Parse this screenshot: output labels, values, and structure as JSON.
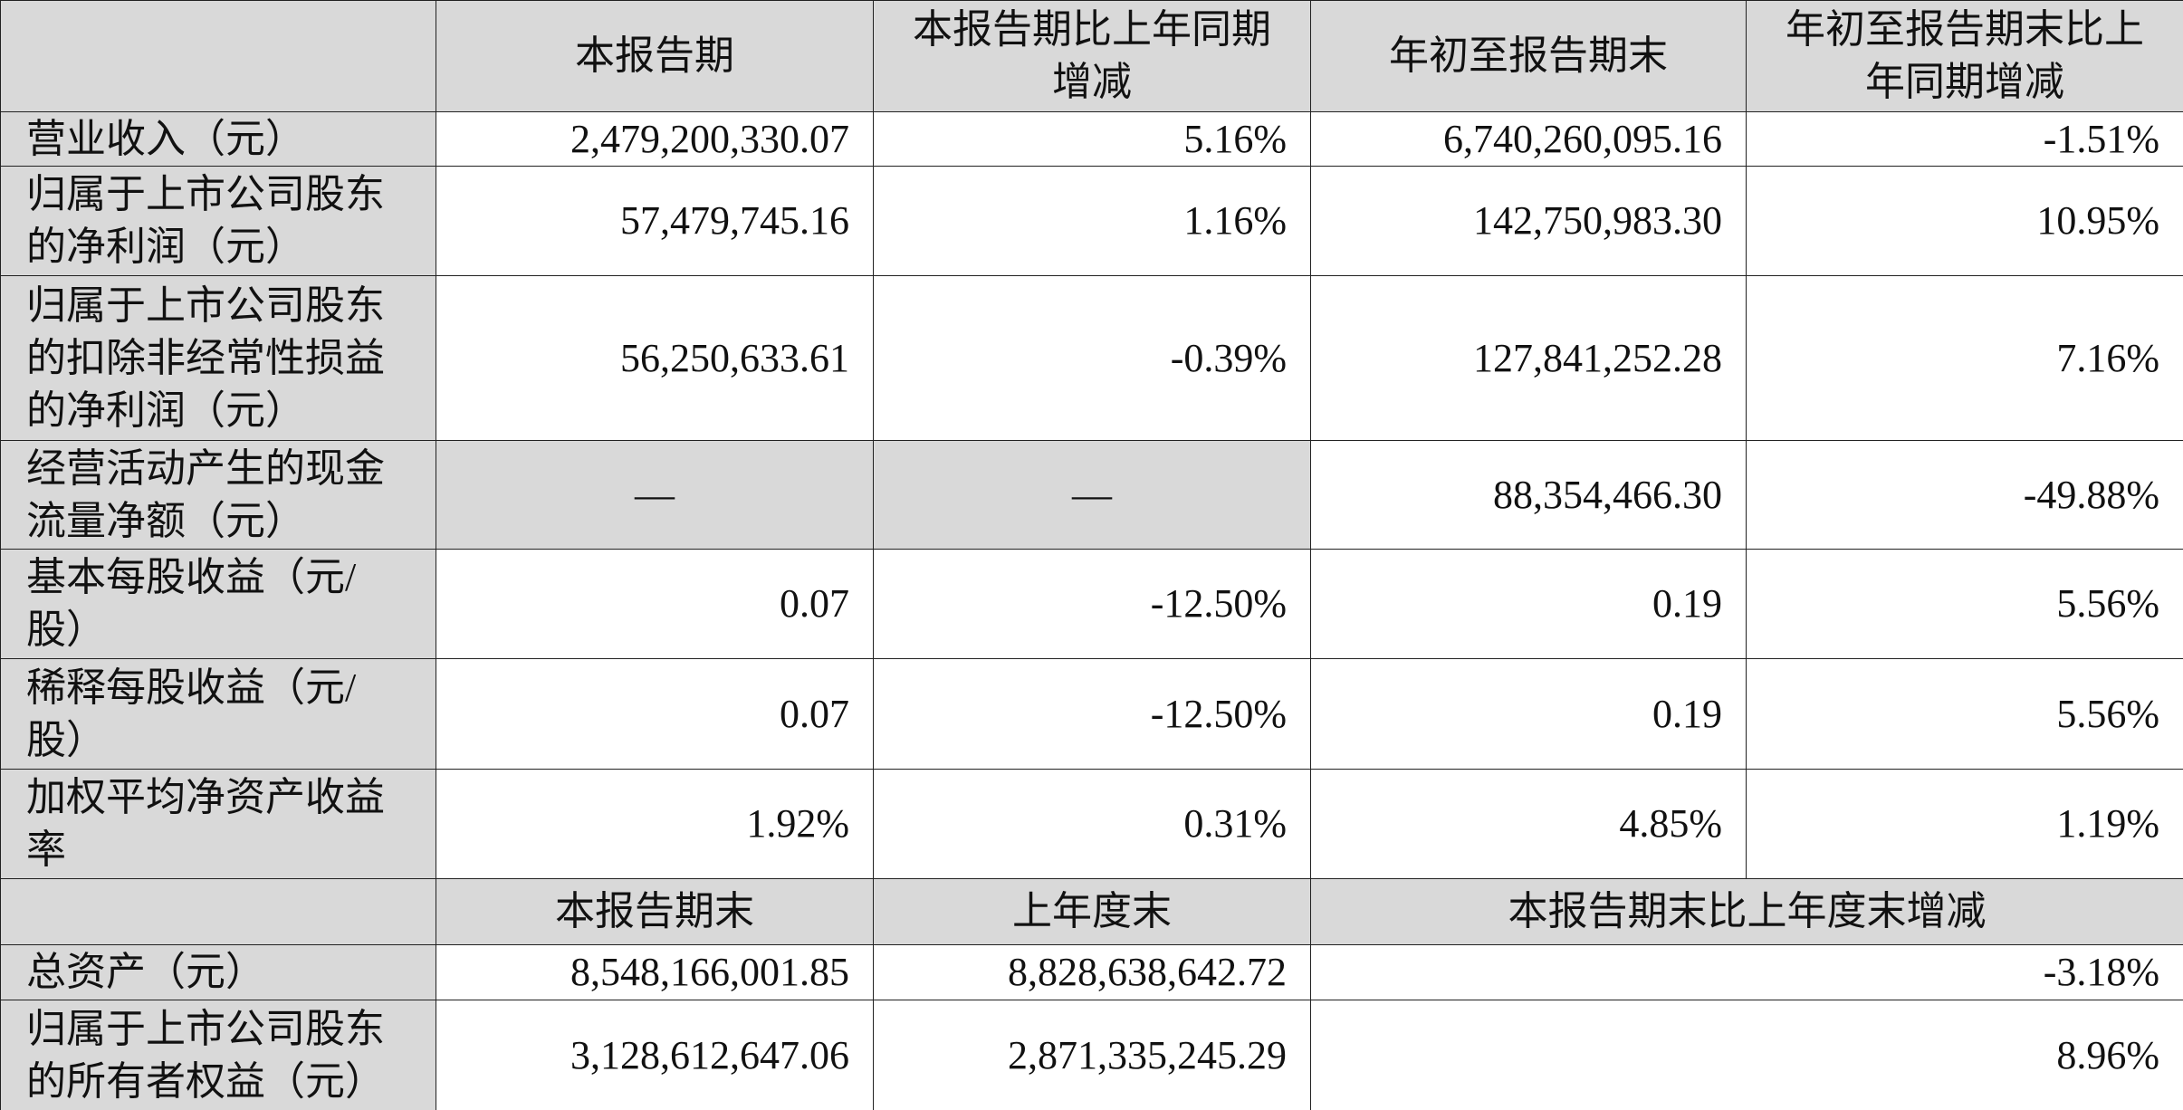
{
  "header": [
    "",
    "本报告期",
    "本报告期比上年同期增减",
    "年初至报告期末",
    "年初至报告期末比上年同期增减"
  ],
  "rows": [
    {
      "label": "营业收入（元）",
      "values": [
        "2,479,200,330.07",
        "5.16%",
        "6,740,260,095.16",
        "-1.51%"
      ]
    },
    {
      "label": "归属于上市公司股东的净利润（元）",
      "values": [
        "57,479,745.16",
        "1.16%",
        "142,750,983.30",
        "10.95%"
      ]
    },
    {
      "label": "归属于上市公司股东的扣除非经常性损益的净利润（元）",
      "values": [
        "56,250,633.61",
        "-0.39%",
        "127,841,252.28",
        "7.16%"
      ]
    },
    {
      "label": "经营活动产生的现金流量净额（元）",
      "values": [
        "—",
        "—",
        "88,354,466.30",
        "-49.88%"
      ]
    },
    {
      "label": "基本每股收益（元/股）",
      "values": [
        "0.07",
        "-12.50%",
        "0.19",
        "5.56%"
      ]
    },
    {
      "label": "稀释每股收益（元/股）",
      "values": [
        "0.07",
        "-12.50%",
        "0.19",
        "5.56%"
      ]
    },
    {
      "label": "加权平均净资产收益率",
      "values": [
        "1.92%",
        "0.31%",
        "4.85%",
        "1.19%"
      ]
    }
  ],
  "header2": [
    "",
    "本报告期末",
    "上年度末",
    "本报告期末比上年度末增减"
  ],
  "rows2": [
    {
      "label": "总资产（元）",
      "values": [
        "8,548,166,001.85",
        "8,828,638,642.72",
        "-3.18%"
      ]
    },
    {
      "label": "归属于上市公司股东的所有者权益（元）",
      "values": [
        "3,128,612,647.06",
        "2,871,335,245.29",
        "8.96%"
      ]
    }
  ],
  "colors": {
    "shaded": "#d9d9d9",
    "border": "#222222"
  }
}
